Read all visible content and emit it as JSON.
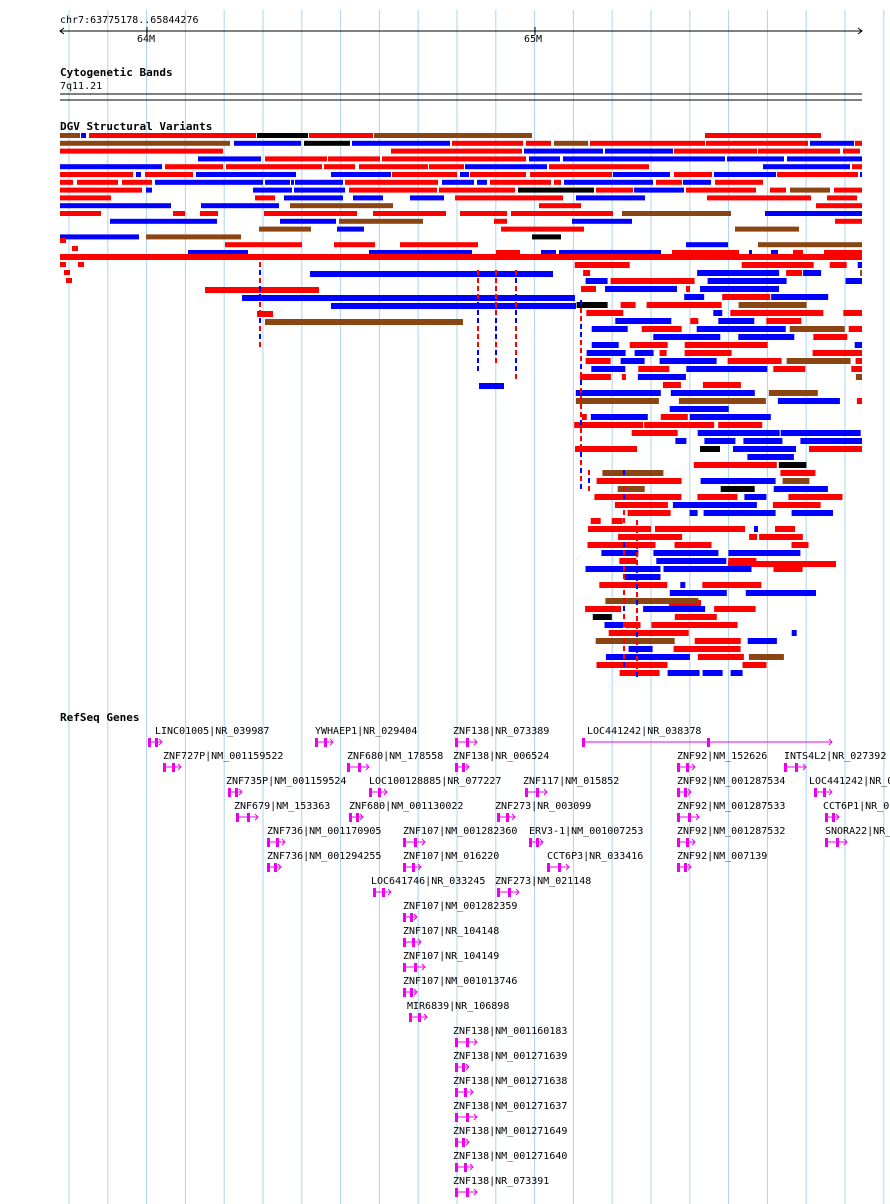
{
  "ruler": {
    "location": "chr7:63775178..65844276",
    "ticks": [
      "64M",
      "65M"
    ]
  },
  "tracks": {
    "cytoband": {
      "title": "Cytogenetic Bands",
      "band": "7q11.21"
    },
    "dgv": {
      "title": "DGV Structural Variants"
    },
    "refseq": {
      "title": "RefSeq Genes"
    }
  },
  "colors": {
    "grid": "#aad4f2",
    "deletion": "#ff0000",
    "duplication": "#0000ff",
    "complex": "#8b4513",
    "gene": "#ee00ee"
  },
  "genes": [
    {
      "label": "LINC01005|NR_039987"
    },
    {
      "label": "YWHAEP1|NR_029404"
    },
    {
      "label": "ZNF138|NR_073389"
    },
    {
      "label": "LOC441242|NR_038378"
    },
    {
      "label": "ZNF727P|NM_001159522"
    },
    {
      "label": "ZNF680|NM_178558"
    },
    {
      "label": "ZNF138|NR_006524"
    },
    {
      "label": "ZNF92|NM_152626"
    },
    {
      "label": "INTS4L2|NR_027392"
    },
    {
      "label": "ZNF735P|NM_001159524"
    },
    {
      "label": "LOC100128885|NR_077227"
    },
    {
      "label": "ZNF117|NM_015852"
    },
    {
      "label": "ZNF92|NM_001287534"
    },
    {
      "label": "LOC441242|NR_0"
    },
    {
      "label": "ZNF679|NM_153363"
    },
    {
      "label": "ZNF680|NM_001130022"
    },
    {
      "label": "ZNF273|NR_003099"
    },
    {
      "label": "ZNF92|NM_001287533"
    },
    {
      "label": "CCT6P1|NR_0"
    },
    {
      "label": "ZNF736|NM_001170905"
    },
    {
      "label": "ZNF107|NM_001282360"
    },
    {
      "label": "ERV3-1|NM_001007253"
    },
    {
      "label": "ZNF92|NM_001287532"
    },
    {
      "label": "SNORA22|NR_"
    },
    {
      "label": "ZNF736|NM_001294255"
    },
    {
      "label": "ZNF107|NM_016220"
    },
    {
      "label": "CCT6P3|NR_033416"
    },
    {
      "label": "ZNF92|NM_007139"
    },
    {
      "label": "LOC641746|NR_033245"
    },
    {
      "label": "ZNF273|NM_021148"
    },
    {
      "label": "ZNF107|NM_001282359"
    },
    {
      "label": "ZNF107|NR_104148"
    },
    {
      "label": "ZNF107|NR_104149"
    },
    {
      "label": "ZNF107|NM_001013746"
    },
    {
      "label": "MIR6839|NR_106898"
    },
    {
      "label": "ZNF138|NM_001160183"
    },
    {
      "label": "ZNF138|NM_001271639"
    },
    {
      "label": "ZNF138|NM_001271638"
    },
    {
      "label": "ZNF138|NM_001271637"
    },
    {
      "label": "ZNF138|NM_001271649"
    },
    {
      "label": "ZNF138|NM_001271640"
    },
    {
      "label": "ZNF138|NR_073391"
    }
  ]
}
